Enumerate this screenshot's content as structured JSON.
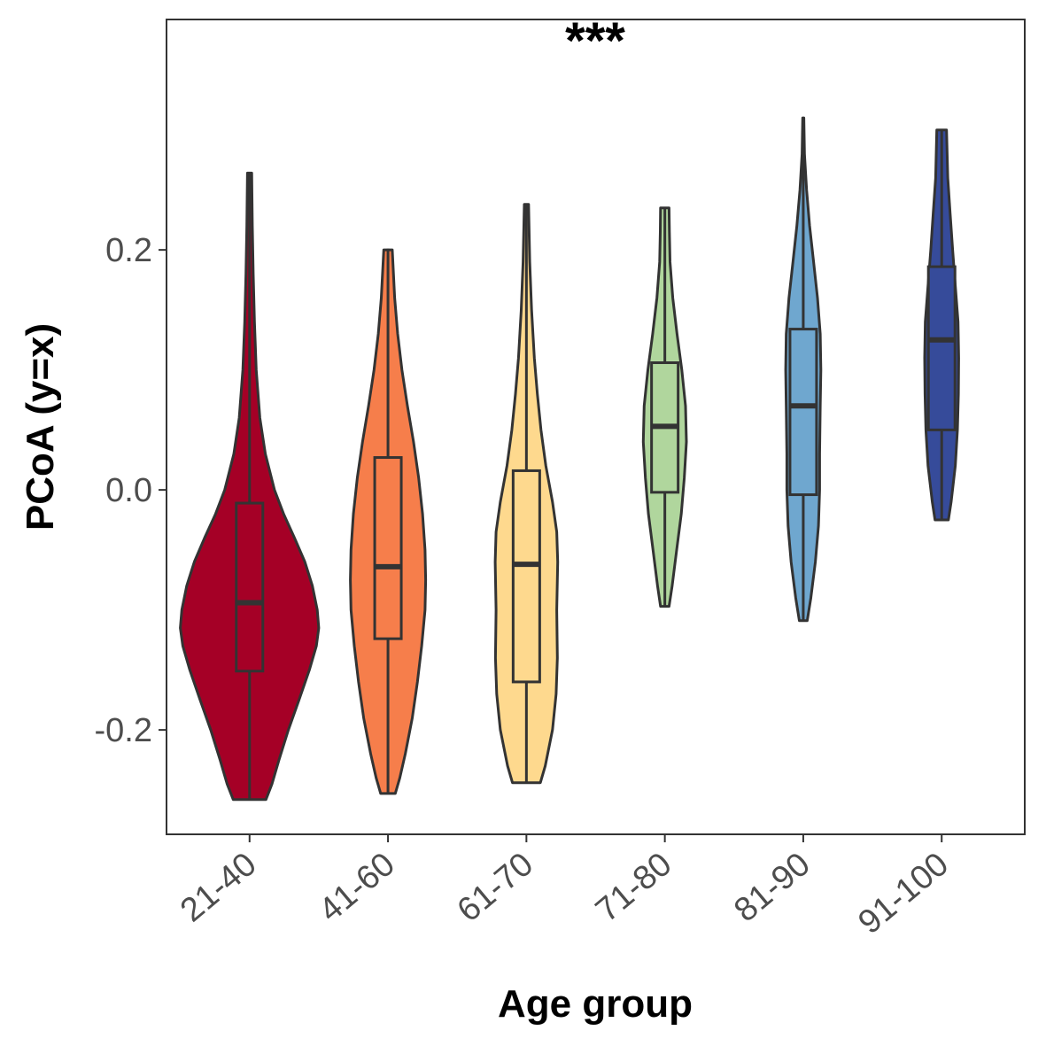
{
  "chart_data": {
    "type": "violin",
    "xlabel": "Age group",
    "ylabel": "PCoA (y=x)",
    "annotation": "***",
    "ylim": [
      -0.287,
      0.392
    ],
    "yticks": [
      {
        "value": 0.2,
        "label": "0.2"
      },
      {
        "value": 0.0,
        "label": "0.0"
      },
      {
        "value": -0.2,
        "label": "-0.2"
      }
    ],
    "grid": false,
    "series": [
      {
        "category": "21-40",
        "color": "#a50026",
        "min": -0.258,
        "q1": -0.151,
        "median": -0.094,
        "q3": -0.011,
        "max": 0.264,
        "violin": [
          [
            -0.258,
            0.054
          ],
          [
            -0.245,
            0.074
          ],
          [
            -0.225,
            0.097
          ],
          [
            -0.2,
            0.128
          ],
          [
            -0.175,
            0.163
          ],
          [
            -0.15,
            0.197
          ],
          [
            -0.13,
            0.22
          ],
          [
            -0.115,
            0.228
          ],
          [
            -0.1,
            0.223
          ],
          [
            -0.08,
            0.207
          ],
          [
            -0.06,
            0.182
          ],
          [
            -0.04,
            0.148
          ],
          [
            -0.02,
            0.112
          ],
          [
            0.0,
            0.082
          ],
          [
            0.03,
            0.052
          ],
          [
            0.06,
            0.034
          ],
          [
            0.1,
            0.022
          ],
          [
            0.14,
            0.016
          ],
          [
            0.18,
            0.012
          ],
          [
            0.22,
            0.009
          ],
          [
            0.264,
            0.007
          ]
        ]
      },
      {
        "category": "41-60",
        "color": "#f67e4b",
        "min": -0.253,
        "q1": -0.124,
        "median": -0.064,
        "q3": 0.027,
        "max": 0.201,
        "violin": [
          [
            -0.253,
            0.024
          ],
          [
            -0.24,
            0.039
          ],
          [
            -0.22,
            0.057
          ],
          [
            -0.19,
            0.08
          ],
          [
            -0.16,
            0.097
          ],
          [
            -0.13,
            0.111
          ],
          [
            -0.1,
            0.122
          ],
          [
            -0.075,
            0.124
          ],
          [
            -0.05,
            0.122
          ],
          [
            -0.02,
            0.114
          ],
          [
            0.01,
            0.101
          ],
          [
            0.04,
            0.084
          ],
          [
            0.07,
            0.064
          ],
          [
            0.1,
            0.046
          ],
          [
            0.13,
            0.032
          ],
          [
            0.16,
            0.022
          ],
          [
            0.2,
            0.014
          ]
        ]
      },
      {
        "category": "61-70",
        "color": "#fed98e",
        "min": -0.244,
        "q1": -0.16,
        "median": -0.062,
        "q3": 0.016,
        "max": 0.238,
        "violin": [
          [
            -0.244,
            0.046
          ],
          [
            -0.23,
            0.062
          ],
          [
            -0.2,
            0.086
          ],
          [
            -0.17,
            0.098
          ],
          [
            -0.14,
            0.102
          ],
          [
            -0.1,
            0.1
          ],
          [
            -0.06,
            0.103
          ],
          [
            -0.035,
            0.1
          ],
          [
            -0.01,
            0.086
          ],
          [
            0.02,
            0.064
          ],
          [
            0.05,
            0.048
          ],
          [
            0.08,
            0.036
          ],
          [
            0.11,
            0.026
          ],
          [
            0.15,
            0.017
          ],
          [
            0.19,
            0.011
          ],
          [
            0.238,
            0.007
          ]
        ]
      },
      {
        "category": "71-80",
        "color": "#b0d69d",
        "min": -0.097,
        "q1": -0.002,
        "median": 0.053,
        "q3": 0.106,
        "max": 0.235,
        "violin": [
          [
            -0.097,
            0.014
          ],
          [
            -0.08,
            0.024
          ],
          [
            -0.05,
            0.039
          ],
          [
            -0.02,
            0.054
          ],
          [
            0.01,
            0.064
          ],
          [
            0.04,
            0.071
          ],
          [
            0.07,
            0.068
          ],
          [
            0.1,
            0.056
          ],
          [
            0.13,
            0.04
          ],
          [
            0.16,
            0.026
          ],
          [
            0.19,
            0.017
          ],
          [
            0.215,
            0.015
          ],
          [
            0.235,
            0.014
          ]
        ]
      },
      {
        "category": "81-90",
        "color": "#6fa7cf",
        "min": -0.109,
        "q1": -0.004,
        "median": 0.07,
        "q3": 0.134,
        "max": 0.31,
        "violin": [
          [
            -0.109,
            0.013
          ],
          [
            -0.09,
            0.025
          ],
          [
            -0.06,
            0.04
          ],
          [
            -0.03,
            0.05
          ],
          [
            0.0,
            0.054
          ],
          [
            0.03,
            0.054
          ],
          [
            0.07,
            0.056
          ],
          [
            0.1,
            0.058
          ],
          [
            0.13,
            0.056
          ],
          [
            0.16,
            0.047
          ],
          [
            0.19,
            0.034
          ],
          [
            0.22,
            0.021
          ],
          [
            0.25,
            0.011
          ],
          [
            0.28,
            0.004
          ],
          [
            0.31,
            0.002
          ]
        ]
      },
      {
        "category": "91-100",
        "color": "#364b9a",
        "min": -0.025,
        "q1": 0.05,
        "median": 0.125,
        "q3": 0.186,
        "max": 0.3,
        "violin": [
          [
            -0.025,
            0.022
          ],
          [
            -0.01,
            0.031
          ],
          [
            0.02,
            0.045
          ],
          [
            0.05,
            0.052
          ],
          [
            0.08,
            0.055
          ],
          [
            0.11,
            0.056
          ],
          [
            0.14,
            0.054
          ],
          [
            0.17,
            0.045
          ],
          [
            0.2,
            0.036
          ],
          [
            0.23,
            0.028
          ],
          [
            0.26,
            0.02
          ],
          [
            0.3,
            0.016
          ]
        ]
      }
    ]
  }
}
